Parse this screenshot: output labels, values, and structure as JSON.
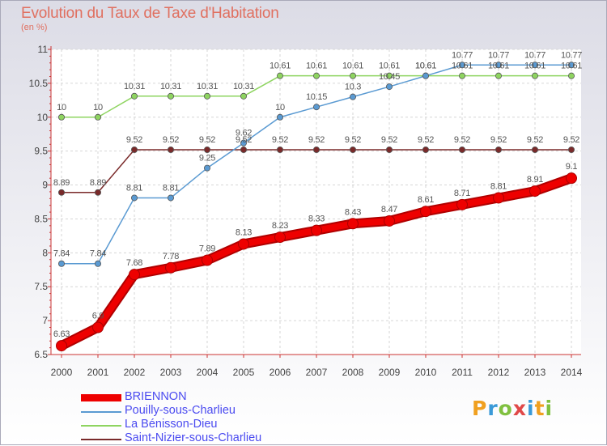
{
  "title": "Evolution du Taux de Taxe d'Habitation",
  "unit": "(en %)",
  "logo": {
    "letters": [
      "P",
      "r",
      "o",
      "x",
      "i",
      "t",
      "i"
    ],
    "colors": [
      "#f0a020",
      "#3a9ad8",
      "#80c040",
      "#e04848",
      "#3a9ad8",
      "#f0a020",
      "#80c040"
    ]
  },
  "chart_data": {
    "type": "line",
    "x": [
      "2000",
      "2001",
      "2002",
      "2003",
      "2004",
      "2005",
      "2006",
      "2007",
      "2008",
      "2009",
      "2010",
      "2011",
      "2012",
      "2013",
      "2014"
    ],
    "ylim": [
      6.5,
      11
    ],
    "yticks": [
      "6.5",
      "7",
      "7.5",
      "8",
      "8.5",
      "9",
      "9.5",
      "10",
      "10.5",
      "11"
    ],
    "grid": true,
    "legend_position": "bottom-left",
    "series": [
      {
        "name": "BRIENNON",
        "color": "#ee0000",
        "values": [
          6.63,
          6.9,
          7.68,
          7.78,
          7.89,
          8.13,
          8.23,
          8.33,
          8.43,
          8.47,
          8.61,
          8.71,
          8.81,
          8.91,
          9.1
        ],
        "labels": [
          "6.63",
          "6.9",
          "7.68",
          "7.78",
          "7.89",
          "8.13",
          "8.23",
          "8.33",
          "8.43",
          "8.47",
          "8.61",
          "8.71",
          "8.81",
          "8.91",
          "9.1"
        ]
      },
      {
        "name": "Pouilly-sous-Charlieu",
        "color": "#5a9ad2",
        "values": [
          7.84,
          7.84,
          8.81,
          8.81,
          9.25,
          9.62,
          10,
          10.15,
          10.3,
          10.45,
          10.61,
          10.77,
          10.77,
          10.77,
          10.77
        ],
        "labels": [
          "7.84",
          "7.84",
          "8.81",
          "8.81",
          "9.25",
          "9.62",
          "10",
          "10.15",
          "10.3",
          "10.45",
          "10.61",
          "10.77",
          "10.77",
          "10.77",
          "10.77"
        ]
      },
      {
        "name": "La Bénisson-Dieu",
        "color": "#8ed460",
        "values": [
          10,
          10,
          10.31,
          10.31,
          10.31,
          10.31,
          10.61,
          10.61,
          10.61,
          10.61,
          10.61,
          10.61,
          10.61,
          10.61,
          10.61
        ],
        "labels": [
          "10",
          "10",
          "10.31",
          "10.31",
          "10.31",
          "10.31",
          "10.61",
          "10.61",
          "10.61",
          "10.61",
          "10.61",
          "10.61",
          "10.61",
          "10.61",
          "10.61"
        ]
      },
      {
        "name": "Saint-Nizier-sous-Charlieu",
        "color": "#7a2a2a",
        "values": [
          8.89,
          8.89,
          9.52,
          9.52,
          9.52,
          9.52,
          9.52,
          9.52,
          9.52,
          9.52,
          9.52,
          9.52,
          9.52,
          9.52,
          9.52
        ],
        "labels": [
          "8.89",
          "8.89",
          "9.52",
          "9.52",
          "9.52",
          "9.52",
          "9.52",
          "9.52",
          "9.52",
          "9.52",
          "9.52",
          "9.52",
          "9.52",
          "9.52",
          "9.52"
        ]
      }
    ]
  }
}
